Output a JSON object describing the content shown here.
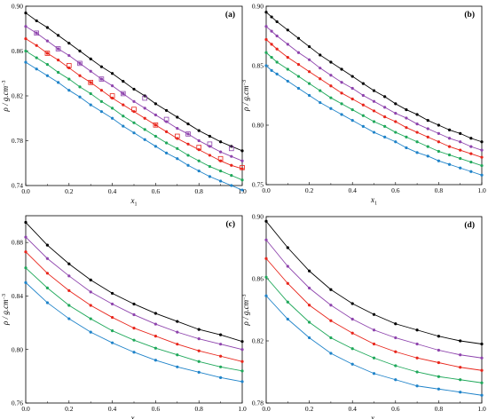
{
  "chart_data": [
    {
      "type": "scatter",
      "panel_label": "(a)",
      "xlabel": "x",
      "xlabel_sub": "1",
      "ylabel": "ρ / g.cm",
      "ylabel_sup": "−3",
      "xlim": [
        0,
        1.0
      ],
      "ylim": [
        0.74,
        0.9
      ],
      "xticks": [
        "0.0",
        "0.2",
        "0.4",
        "0.6",
        "0.8",
        "1.0"
      ],
      "yticks": [
        "0.74",
        "0.78",
        "0.82",
        "0.86",
        "0.90"
      ],
      "series": [
        {
          "color": "#000000",
          "x": [
            0,
            0.05,
            0.1,
            0.15,
            0.2,
            0.25,
            0.3,
            0.35,
            0.4,
            0.45,
            0.5,
            0.55,
            0.6,
            0.65,
            0.7,
            0.75,
            0.8,
            0.85,
            0.9,
            0.95,
            1.0
          ],
          "y": [
            0.894,
            0.887,
            0.881,
            0.874,
            0.867,
            0.86,
            0.853,
            0.846,
            0.84,
            0.833,
            0.826,
            0.82,
            0.813,
            0.807,
            0.801,
            0.795,
            0.789,
            0.784,
            0.779,
            0.775,
            0.771
          ]
        },
        {
          "color": "#8e44ad",
          "x": [
            0,
            0.05,
            0.1,
            0.15,
            0.2,
            0.25,
            0.3,
            0.35,
            0.4,
            0.45,
            0.5,
            0.55,
            0.6,
            0.65,
            0.7,
            0.75,
            0.8,
            0.85,
            0.9,
            0.95,
            1.0
          ],
          "y": [
            0.882,
            0.876,
            0.869,
            0.862,
            0.856,
            0.849,
            0.842,
            0.835,
            0.829,
            0.822,
            0.815,
            0.809,
            0.803,
            0.797,
            0.791,
            0.786,
            0.78,
            0.775,
            0.77,
            0.766,
            0.762
          ],
          "open_x": [
            0.05,
            0.15,
            0.25,
            0.35,
            0.45,
            0.55,
            0.65,
            0.75,
            0.85,
            0.95
          ],
          "open_y": [
            0.876,
            0.862,
            0.849,
            0.835,
            0.822,
            0.818,
            0.799,
            0.786,
            0.777,
            0.773
          ]
        },
        {
          "color": "#e8251b",
          "x": [
            0,
            0.05,
            0.1,
            0.15,
            0.2,
            0.25,
            0.3,
            0.35,
            0.4,
            0.45,
            0.5,
            0.55,
            0.6,
            0.65,
            0.7,
            0.75,
            0.8,
            0.85,
            0.9,
            0.95,
            1.0
          ],
          "y": [
            0.871,
            0.865,
            0.858,
            0.852,
            0.845,
            0.838,
            0.832,
            0.825,
            0.818,
            0.812,
            0.806,
            0.8,
            0.794,
            0.788,
            0.782,
            0.777,
            0.772,
            0.767,
            0.762,
            0.758,
            0.755
          ],
          "open_x": [
            0.1,
            0.2,
            0.3,
            0.4,
            0.5,
            0.6,
            0.7,
            0.8,
            0.9,
            1.0
          ],
          "open_y": [
            0.858,
            0.847,
            0.832,
            0.82,
            0.808,
            0.794,
            0.784,
            0.774,
            0.764,
            0.756
          ]
        },
        {
          "color": "#1fa85a",
          "x": [
            0,
            0.05,
            0.1,
            0.15,
            0.2,
            0.25,
            0.3,
            0.35,
            0.4,
            0.45,
            0.5,
            0.55,
            0.6,
            0.65,
            0.7,
            0.75,
            0.8,
            0.85,
            0.9,
            0.95,
            1.0
          ],
          "y": [
            0.86,
            0.854,
            0.848,
            0.841,
            0.835,
            0.828,
            0.822,
            0.815,
            0.809,
            0.802,
            0.796,
            0.79,
            0.784,
            0.778,
            0.773,
            0.767,
            0.762,
            0.757,
            0.753,
            0.749,
            0.745
          ]
        },
        {
          "color": "#1f83c9",
          "x": [
            0,
            0.05,
            0.1,
            0.15,
            0.2,
            0.25,
            0.3,
            0.35,
            0.4,
            0.45,
            0.5,
            0.55,
            0.6,
            0.65,
            0.7,
            0.75,
            0.8,
            0.85,
            0.9,
            0.95,
            1.0
          ],
          "y": [
            0.85,
            0.844,
            0.838,
            0.832,
            0.825,
            0.819,
            0.812,
            0.806,
            0.8,
            0.793,
            0.787,
            0.781,
            0.775,
            0.769,
            0.764,
            0.758,
            0.753,
            0.748,
            0.744,
            0.74,
            0.736
          ]
        }
      ]
    },
    {
      "type": "scatter",
      "panel_label": "(b)",
      "xlabel": "x",
      "xlabel_sub": "1",
      "ylabel": "ρ / g.cm",
      "ylabel_sup": "−3",
      "xlim": [
        0,
        1.0
      ],
      "ylim": [
        0.75,
        0.9
      ],
      "xticks": [
        "0.0",
        "0.2",
        "0.4",
        "0.6",
        "0.8",
        "1.0"
      ],
      "yticks": [
        "0.75",
        "0.80",
        "0.85",
        "0.90"
      ],
      "series": [
        {
          "color": "#000000",
          "x": [
            0,
            0.025,
            0.05,
            0.1,
            0.15,
            0.2,
            0.25,
            0.3,
            0.35,
            0.4,
            0.45,
            0.5,
            0.55,
            0.6,
            0.65,
            0.7,
            0.75,
            0.8,
            0.85,
            0.9,
            0.95,
            1.0
          ],
          "y": [
            0.895,
            0.891,
            0.887,
            0.88,
            0.873,
            0.866,
            0.859,
            0.853,
            0.847,
            0.841,
            0.835,
            0.829,
            0.824,
            0.818,
            0.813,
            0.809,
            0.804,
            0.8,
            0.796,
            0.793,
            0.789,
            0.786
          ]
        },
        {
          "color": "#8e44ad",
          "x": [
            0,
            0.025,
            0.05,
            0.1,
            0.15,
            0.2,
            0.25,
            0.3,
            0.35,
            0.4,
            0.45,
            0.5,
            0.55,
            0.6,
            0.65,
            0.7,
            0.75,
            0.8,
            0.85,
            0.9,
            0.95,
            1.0
          ],
          "y": [
            0.883,
            0.879,
            0.875,
            0.868,
            0.861,
            0.855,
            0.848,
            0.842,
            0.836,
            0.831,
            0.825,
            0.82,
            0.815,
            0.81,
            0.806,
            0.801,
            0.797,
            0.793,
            0.789,
            0.786,
            0.782,
            0.779
          ]
        },
        {
          "color": "#e8251b",
          "x": [
            0,
            0.025,
            0.05,
            0.1,
            0.15,
            0.2,
            0.25,
            0.3,
            0.35,
            0.4,
            0.45,
            0.5,
            0.55,
            0.6,
            0.65,
            0.7,
            0.75,
            0.8,
            0.85,
            0.9,
            0.95,
            1.0
          ],
          "y": [
            0.872,
            0.868,
            0.864,
            0.857,
            0.851,
            0.845,
            0.839,
            0.833,
            0.827,
            0.822,
            0.817,
            0.812,
            0.807,
            0.803,
            0.798,
            0.794,
            0.79,
            0.786,
            0.782,
            0.779,
            0.776,
            0.773
          ]
        },
        {
          "color": "#1fa85a",
          "x": [
            0,
            0.025,
            0.05,
            0.1,
            0.15,
            0.2,
            0.25,
            0.3,
            0.35,
            0.4,
            0.45,
            0.5,
            0.55,
            0.6,
            0.65,
            0.7,
            0.75,
            0.8,
            0.85,
            0.9,
            0.95,
            1.0
          ],
          "y": [
            0.861,
            0.857,
            0.853,
            0.847,
            0.841,
            0.835,
            0.829,
            0.823,
            0.818,
            0.813,
            0.808,
            0.803,
            0.799,
            0.794,
            0.79,
            0.786,
            0.782,
            0.778,
            0.775,
            0.772,
            0.769,
            0.766
          ]
        },
        {
          "color": "#1f83c9",
          "x": [
            0,
            0.025,
            0.05,
            0.1,
            0.15,
            0.2,
            0.25,
            0.3,
            0.35,
            0.4,
            0.45,
            0.5,
            0.55,
            0.6,
            0.65,
            0.7,
            0.75,
            0.8,
            0.85,
            0.9,
            0.95,
            1.0
          ],
          "y": [
            0.85,
            0.846,
            0.843,
            0.837,
            0.831,
            0.825,
            0.819,
            0.814,
            0.809,
            0.804,
            0.799,
            0.794,
            0.79,
            0.786,
            0.781,
            0.777,
            0.774,
            0.77,
            0.767,
            0.764,
            0.761,
            0.758
          ]
        }
      ]
    },
    {
      "type": "scatter",
      "panel_label": "(c)",
      "xlabel": "x",
      "xlabel_sub": "1",
      "ylabel": "ρ / g.cm",
      "ylabel_sup": "−3",
      "xlim": [
        0,
        1.0
      ],
      "ylim": [
        0.76,
        0.9
      ],
      "xticks": [
        "0.0",
        "0.2",
        "0.4",
        "0.6",
        "0.8",
        "1.0"
      ],
      "yticks": [
        "0.76",
        "0.80",
        "0.84",
        "0.88"
      ],
      "series": [
        {
          "color": "#000000",
          "x": [
            0,
            0.1,
            0.2,
            0.3,
            0.4,
            0.5,
            0.6,
            0.7,
            0.8,
            0.9,
            1.0
          ],
          "y": [
            0.895,
            0.878,
            0.864,
            0.852,
            0.842,
            0.834,
            0.827,
            0.821,
            0.815,
            0.811,
            0.806
          ]
        },
        {
          "color": "#8e44ad",
          "x": [
            0,
            0.1,
            0.2,
            0.3,
            0.4,
            0.5,
            0.6,
            0.7,
            0.8,
            0.9,
            1.0
          ],
          "y": [
            0.884,
            0.868,
            0.855,
            0.843,
            0.834,
            0.826,
            0.819,
            0.813,
            0.808,
            0.804,
            0.8
          ]
        },
        {
          "color": "#e8251b",
          "x": [
            0,
            0.1,
            0.2,
            0.3,
            0.4,
            0.5,
            0.6,
            0.7,
            0.8,
            0.9,
            1.0
          ],
          "y": [
            0.873,
            0.857,
            0.844,
            0.833,
            0.824,
            0.816,
            0.81,
            0.804,
            0.799,
            0.795,
            0.791
          ]
        },
        {
          "color": "#1fa85a",
          "x": [
            0,
            0.1,
            0.2,
            0.3,
            0.4,
            0.5,
            0.6,
            0.7,
            0.8,
            0.9,
            1.0
          ],
          "y": [
            0.861,
            0.846,
            0.833,
            0.823,
            0.814,
            0.807,
            0.801,
            0.796,
            0.791,
            0.787,
            0.784
          ]
        },
        {
          "color": "#1f83c9",
          "x": [
            0,
            0.1,
            0.2,
            0.3,
            0.4,
            0.5,
            0.6,
            0.7,
            0.8,
            0.9,
            1.0
          ],
          "y": [
            0.85,
            0.835,
            0.823,
            0.813,
            0.805,
            0.798,
            0.792,
            0.787,
            0.783,
            0.779,
            0.776
          ]
        }
      ]
    },
    {
      "type": "scatter",
      "panel_label": "(d)",
      "xlabel": "x",
      "xlabel_sub": "1",
      "ylabel": "ρ / g.cm",
      "ylabel_sup": "−3",
      "xlim": [
        0,
        1.0
      ],
      "ylim": [
        0.78,
        0.9
      ],
      "xticks": [
        "0.0",
        "0.2",
        "0.4",
        "0.6",
        "0.8",
        "1.0"
      ],
      "yticks": [
        "0.78",
        "0.82",
        "0.86",
        "0.90"
      ],
      "series": [
        {
          "color": "#000000",
          "x": [
            0,
            0.1,
            0.2,
            0.3,
            0.4,
            0.5,
            0.6,
            0.7,
            0.8,
            0.9,
            1.0
          ],
          "y": [
            0.897,
            0.88,
            0.865,
            0.853,
            0.844,
            0.837,
            0.831,
            0.827,
            0.823,
            0.82,
            0.818
          ]
        },
        {
          "color": "#8e44ad",
          "x": [
            0,
            0.1,
            0.2,
            0.3,
            0.4,
            0.5,
            0.6,
            0.7,
            0.8,
            0.9,
            1.0
          ],
          "y": [
            0.885,
            0.868,
            0.854,
            0.843,
            0.834,
            0.827,
            0.822,
            0.818,
            0.814,
            0.811,
            0.809
          ]
        },
        {
          "color": "#e8251b",
          "x": [
            0,
            0.1,
            0.2,
            0.3,
            0.4,
            0.5,
            0.6,
            0.7,
            0.8,
            0.9,
            1.0
          ],
          "y": [
            0.873,
            0.857,
            0.843,
            0.833,
            0.825,
            0.818,
            0.813,
            0.809,
            0.806,
            0.803,
            0.801
          ]
        },
        {
          "color": "#1fa85a",
          "x": [
            0,
            0.1,
            0.2,
            0.3,
            0.4,
            0.5,
            0.6,
            0.7,
            0.8,
            0.9,
            1.0
          ],
          "y": [
            0.861,
            0.845,
            0.832,
            0.822,
            0.815,
            0.809,
            0.804,
            0.8,
            0.797,
            0.795,
            0.793
          ]
        },
        {
          "color": "#1f83c9",
          "x": [
            0,
            0.1,
            0.2,
            0.3,
            0.4,
            0.5,
            0.6,
            0.7,
            0.8,
            0.9,
            1.0
          ],
          "y": [
            0.849,
            0.834,
            0.822,
            0.812,
            0.805,
            0.799,
            0.795,
            0.791,
            0.789,
            0.787,
            0.785
          ]
        }
      ]
    }
  ]
}
